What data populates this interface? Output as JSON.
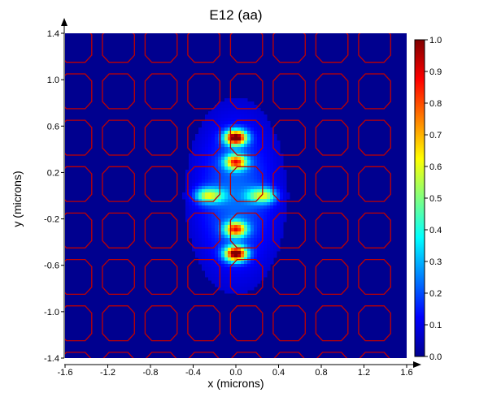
{
  "chart_data": {
    "type": "heatmap",
    "title": "E12 (aa)",
    "xlabel": "x (microns)",
    "ylabel": "y (microns)",
    "xlim": [
      -1.6,
      1.6
    ],
    "ylim": [
      -1.4,
      1.4
    ],
    "x_ticks": [
      "-1.6",
      "-1.2",
      "-0.8",
      "-0.4",
      "0.0",
      "0.4",
      "0.8",
      "1.2",
      "1.6"
    ],
    "y_ticks": [
      "1.4",
      "1.0",
      "0.6",
      "0.2",
      "-0.2",
      "-0.6",
      "-1.0",
      "-1.4"
    ],
    "colorbar": {
      "range": [
        0.0,
        1.0
      ],
      "ticks": [
        "1.0",
        "0.9",
        "0.8",
        "0.7",
        "0.6",
        "0.5",
        "0.4",
        "0.3",
        "0.2",
        "0.1",
        "0.0"
      ],
      "colormap": "jet"
    },
    "lattice": {
      "pattern": "octagonal holes (red outlines)",
      "outline_color": "#c00000",
      "columns_x": [
        -1.5,
        -1.1,
        -0.7,
        -0.3,
        0.1,
        0.5,
        0.9,
        1.3
      ],
      "rows_y": [
        1.3,
        0.9,
        0.5,
        0.1,
        -0.3,
        -0.7,
        -1.1,
        -1.5
      ]
    },
    "field_peaks": [
      {
        "x": 0.0,
        "y": 0.5,
        "value": 1.0
      },
      {
        "x": 0.0,
        "y": -0.5,
        "value": 1.0
      },
      {
        "x": 0.0,
        "y": 0.29,
        "value": 0.75
      },
      {
        "x": 0.0,
        "y": -0.29,
        "value": 0.75
      },
      {
        "x": -0.28,
        "y": 0.0,
        "value": 0.45
      },
      {
        "x": 0.28,
        "y": 0.0,
        "value": 0.45
      },
      {
        "x": -0.17,
        "y": 0.0,
        "value": 0.25
      },
      {
        "x": 0.17,
        "y": 0.0,
        "value": 0.25
      }
    ],
    "background_value": 0.05,
    "grid": false
  }
}
